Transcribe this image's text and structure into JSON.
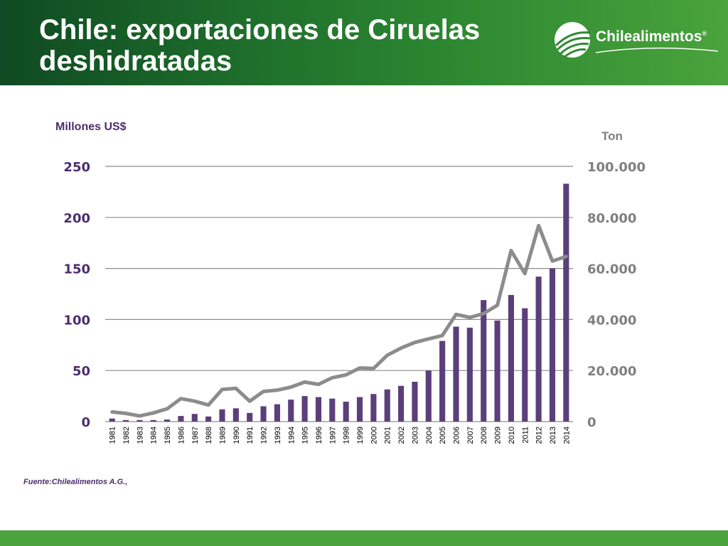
{
  "slide": {
    "title": "Chile: exportaciones de Ciruelas deshidratadas",
    "logo_text": "Chilealimentos",
    "logo_mark": "®",
    "source": "Fuente:Chilealimentos A.G.,"
  },
  "colors": {
    "bars": "#5b3f7a",
    "line": "#8c8c8c",
    "header": "#1f6f2c"
  },
  "chart_data": {
    "type": "bar",
    "categories": [
      "1981",
      "1982",
      "1983",
      "1984",
      "1985",
      "1986",
      "1987",
      "1988",
      "1989",
      "1990",
      "1991",
      "1992",
      "1993",
      "1994",
      "1995",
      "1996",
      "1997",
      "1998",
      "1999",
      "2000",
      "2001",
      "2002",
      "2003",
      "2004",
      "2005",
      "2006",
      "2007",
      "2008",
      "2009",
      "2010",
      "2011",
      "2012",
      "2013",
      "2014"
    ],
    "series": [
      {
        "axis": "left",
        "type": "bar",
        "values": [
          3,
          1.5,
          1.5,
          1.5,
          2,
          5.5,
          7.5,
          5,
          12,
          13,
          8.5,
          15,
          17,
          21.5,
          25,
          24,
          22.5,
          19.5,
          24,
          27,
          31.5,
          35,
          39,
          50,
          79,
          93,
          92,
          119,
          99,
          124,
          111,
          142,
          150,
          233
        ]
      },
      {
        "axis": "right",
        "type": "line",
        "values": [
          3800,
          3200,
          2200,
          3400,
          5000,
          9000,
          8000,
          6500,
          12600,
          13000,
          8000,
          11800,
          12300,
          13500,
          15500,
          14600,
          17200,
          18300,
          21000,
          20800,
          26000,
          28800,
          31000,
          32400,
          33700,
          42000,
          40800,
          42300,
          45600,
          67000,
          58000,
          76800,
          62900,
          64700
        ]
      }
    ],
    "ylabel": "Millones US$",
    "ylabel_right": "Ton",
    "ylim": [
      0,
      250
    ],
    "ylim_right": [
      0,
      100000
    ],
    "yticks": [
      "0",
      "50",
      "100",
      "150",
      "200",
      "250"
    ],
    "yticks_right": [
      "0",
      "20.000",
      "40.000",
      "60.000",
      "80.000",
      "100.000"
    ],
    "grid": true
  }
}
